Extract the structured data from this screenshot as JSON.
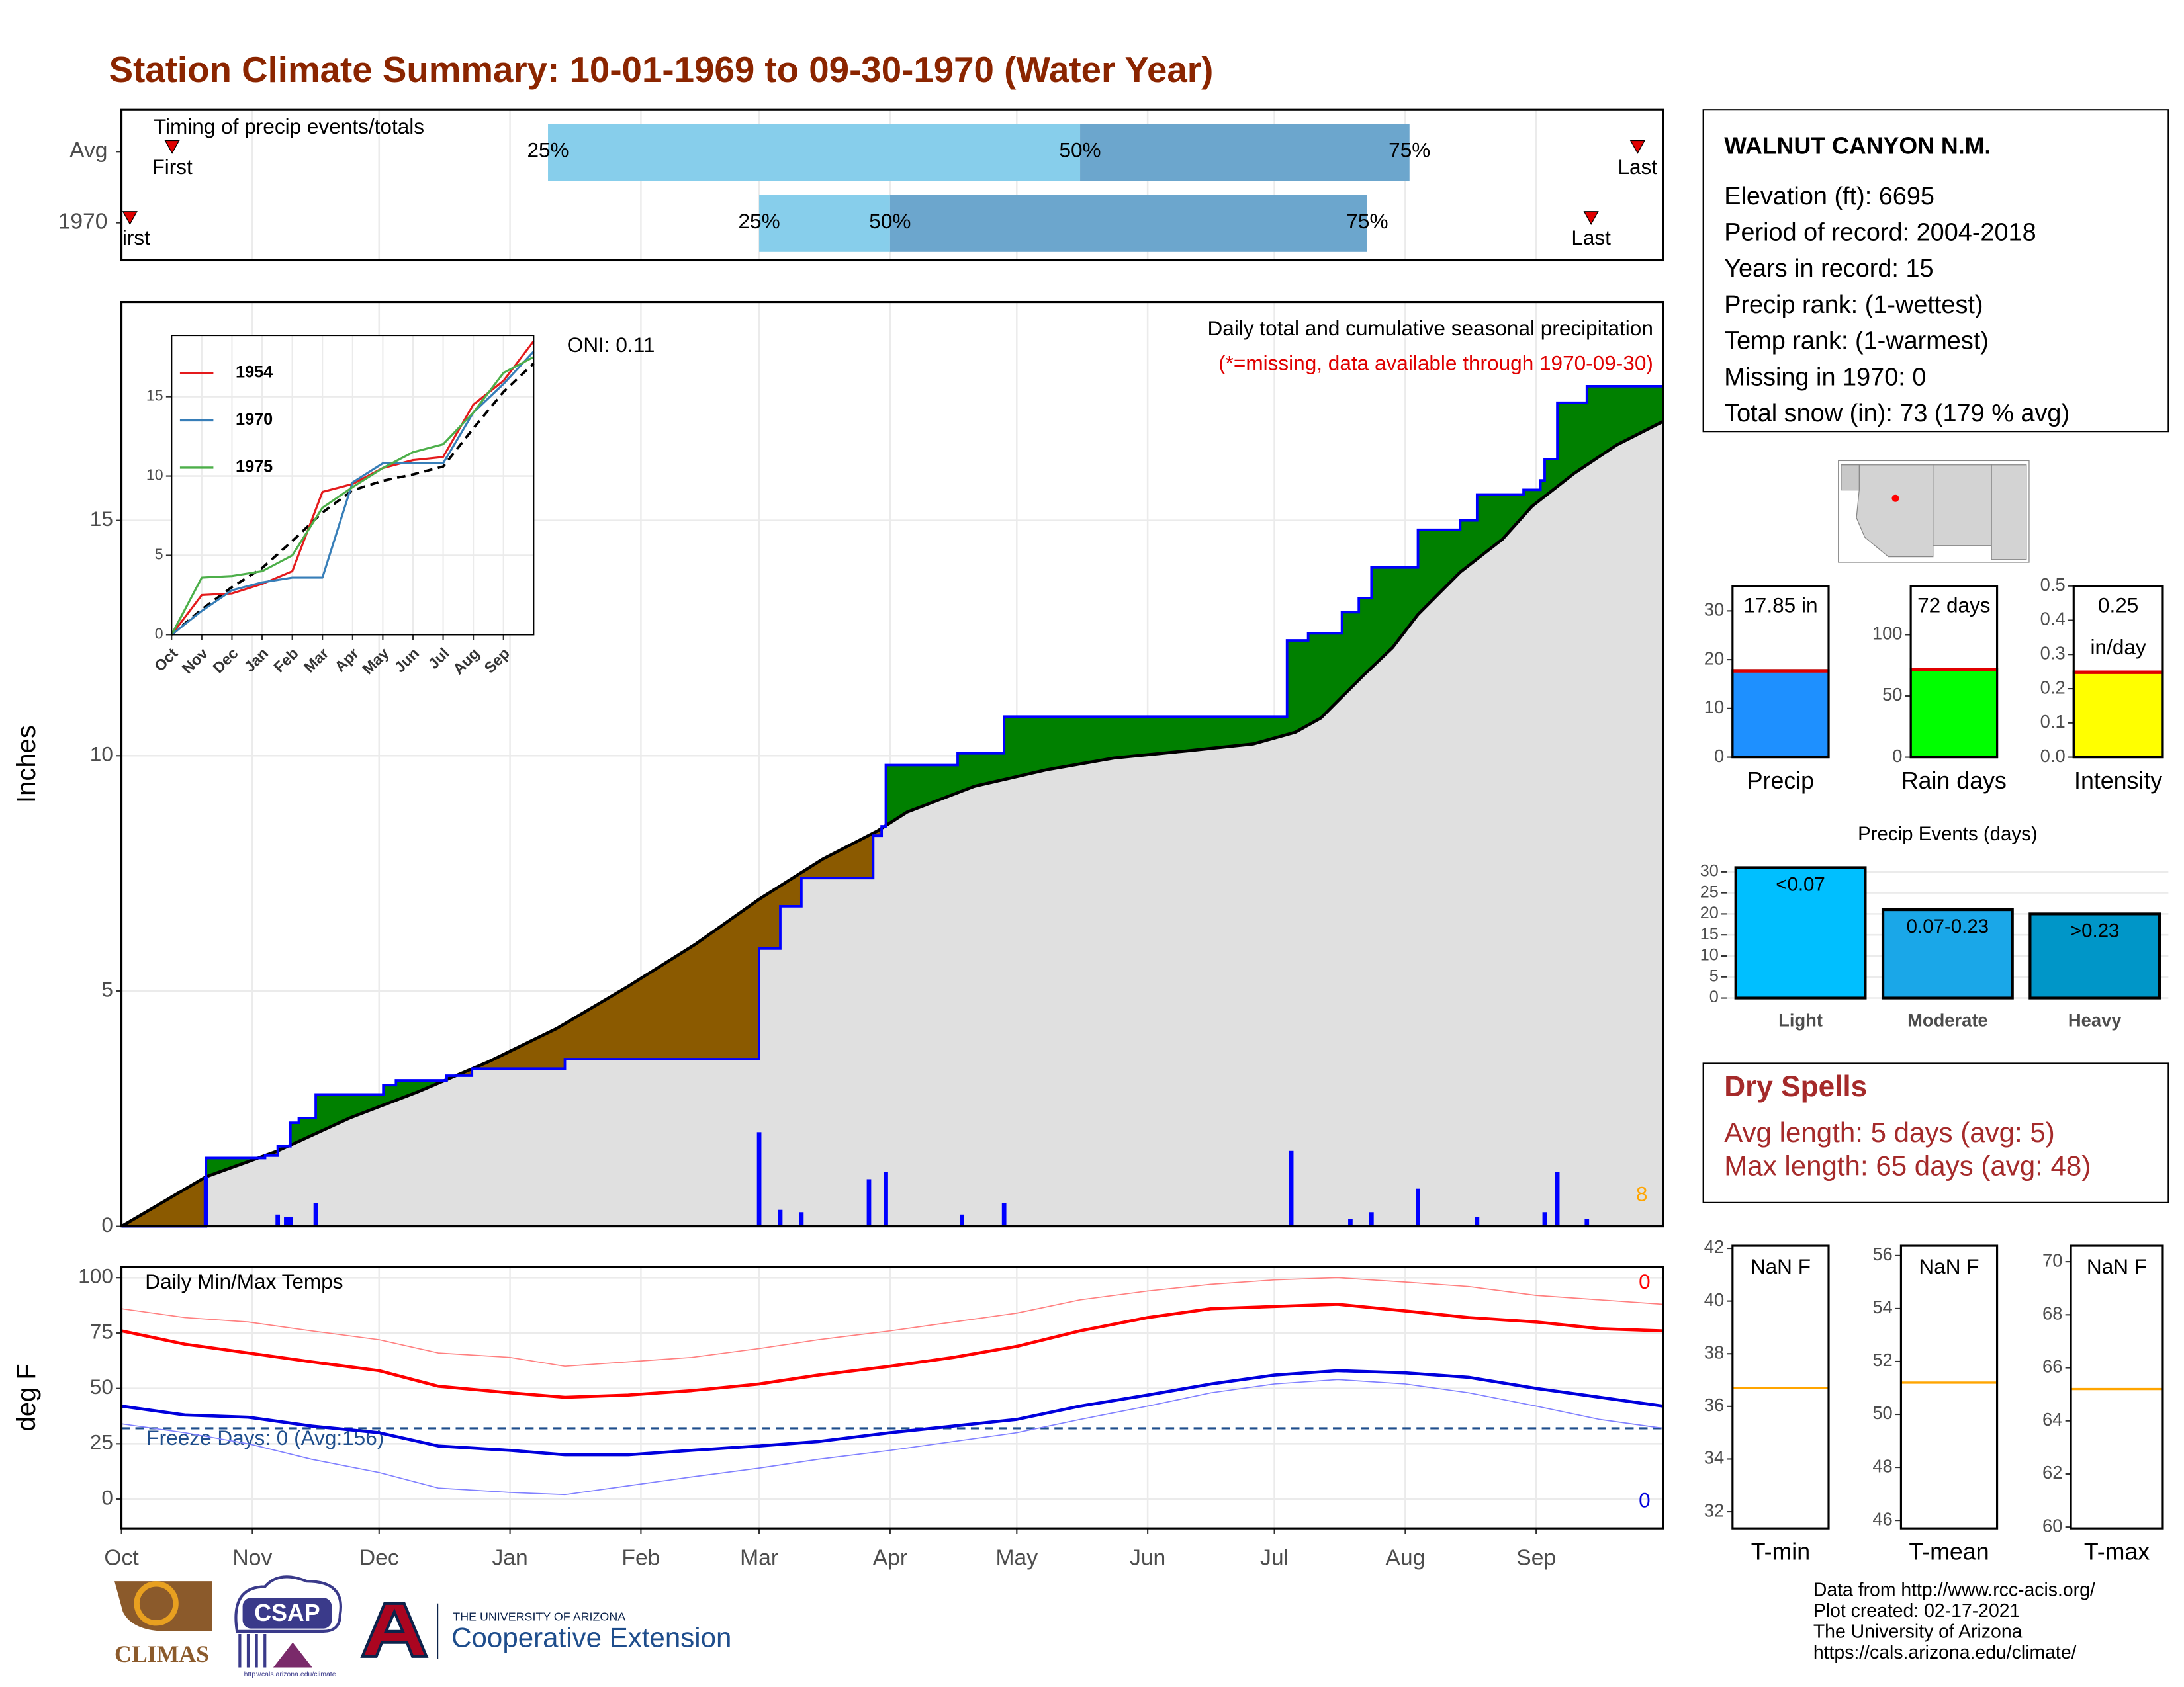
{
  "title": "Station Climate Summary: 10-01-1969 to 09-30-1970 (Water Year)",
  "chart_data": [
    {
      "type": "range",
      "title": "Timing of precip events/totals",
      "categories": [
        "Avg",
        "1970"
      ],
      "first": [
        12,
        2
      ],
      "q25": [
        101,
        151
      ],
      "q50": [
        227,
        182
      ],
      "q75": [
        305,
        295
      ],
      "last": [
        359,
        348
      ],
      "labels": {
        "first": "First",
        "last": "Last",
        "q25": "25%",
        "q50": "50%",
        "q75": "75%"
      },
      "colors": {
        "early": "#87ceeb",
        "late": "#6ca6cd",
        "marker": "#e00000"
      },
      "xlim": [
        0,
        365
      ]
    },
    {
      "type": "area",
      "title": "Daily total and cumulative seasonal precipitation",
      "subtitle": "(*=missing, data available through 1970-09-30)",
      "annotation": "ONI: 0.11",
      "count_note": 8,
      "ylabel": "Inches",
      "xlim": [
        0,
        365
      ],
      "ylim": [
        0,
        19.64
      ],
      "yticks": [
        0,
        5,
        10,
        15
      ],
      "grid": true,
      "series": [
        {
          "color": "#0000ff",
          "x": [
            0,
            20,
            34,
            37,
            40,
            42,
            46,
            62,
            65,
            77,
            83,
            105,
            151,
            156,
            161,
            178,
            180,
            181,
            198,
            209,
            276,
            281,
            289,
            293,
            296,
            307,
            317,
            321,
            332,
            336,
            337,
            340,
            347
          ],
          "values": [
            0,
            1.45,
            1.5,
            1.7,
            2.2,
            2.3,
            2.8,
            3.0,
            3.1,
            3.2,
            3.35,
            3.55,
            5.9,
            6.8,
            7.4,
            8.3,
            8.5,
            9.8,
            10.05,
            10.83,
            12.45,
            12.6,
            13.05,
            13.35,
            14.0,
            14.8,
            15.0,
            15.55,
            15.65,
            15.85,
            16.3,
            17.5,
            17.85
          ]
        }
      ],
      "average": {
        "color": "#000000",
        "x": [
          0,
          20,
          37,
          54,
          70,
          87,
          103,
          120,
          136,
          151,
          166,
          179,
          186,
          202,
          219,
          235,
          252,
          268,
          278,
          284,
          294,
          301,
          307,
          317,
          327,
          334,
          344,
          354,
          365
        ],
        "values": [
          0,
          1.05,
          1.6,
          2.3,
          2.85,
          3.5,
          4.2,
          5.1,
          6.0,
          6.95,
          7.8,
          8.4,
          8.8,
          9.35,
          9.7,
          9.95,
          10.1,
          10.25,
          10.5,
          10.8,
          11.7,
          12.3,
          13.0,
          13.9,
          14.6,
          15.3,
          16.0,
          16.6,
          17.1
        ]
      },
      "bars": {
        "color": "#0000ff",
        "x": [
          20,
          37,
          39,
          40,
          46,
          151,
          156,
          161,
          177,
          181,
          199,
          209,
          277,
          291,
          296,
          307,
          321,
          337,
          340,
          347
        ],
        "values": [
          1.05,
          0.25,
          0.2,
          0.2,
          0.5,
          2.0,
          0.35,
          0.3,
          1.0,
          1.15,
          0.25,
          0.5,
          1.6,
          0.15,
          0.3,
          0.8,
          0.2,
          0.3,
          1.15,
          0.15
        ]
      },
      "above_color": "#008000",
      "below_color": "#8b5a00",
      "base_color": "#e0e0e0"
    },
    {
      "type": "line",
      "x": [
        0,
        1,
        2,
        3,
        4,
        5,
        6,
        7,
        8,
        9,
        10,
        11,
        12
      ],
      "xlim": [
        0,
        12
      ],
      "xticks": [
        {
          "value": 0,
          "label": "Oct"
        },
        {
          "value": 1,
          "label": "Nov"
        },
        {
          "value": 2,
          "label": "Dec"
        },
        {
          "value": 3,
          "label": "Jan"
        },
        {
          "value": 4,
          "label": "Feb"
        },
        {
          "value": 5,
          "label": "Mar"
        },
        {
          "value": 6,
          "label": "Apr"
        },
        {
          "value": 7,
          "label": "May"
        },
        {
          "value": 8,
          "label": "Jun"
        },
        {
          "value": 9,
          "label": "Jul"
        },
        {
          "value": 10,
          "label": "Aug"
        },
        {
          "value": 11,
          "label": "Sep"
        }
      ],
      "xtick_rotation": -45,
      "ylim": [
        0,
        18.86
      ],
      "yticks": [
        0,
        5,
        10,
        15
      ],
      "grid": true,
      "legend": "top-left",
      "series": [
        {
          "name": "1954",
          "color": "#e41a1c",
          "values": [
            0,
            2.5,
            2.6,
            3.2,
            4.0,
            9.0,
            9.5,
            10.5,
            11.0,
            11.2,
            14.5,
            16.0,
            18.5
          ]
        },
        {
          "name": "1970",
          "color": "#377eb8",
          "values": [
            0,
            1.5,
            2.8,
            3.3,
            3.6,
            3.6,
            9.6,
            10.8,
            10.8,
            10.8,
            14.0,
            15.8,
            17.85
          ]
        },
        {
          "name": "1975",
          "color": "#4daf4a",
          "values": [
            0,
            3.6,
            3.7,
            4.0,
            5.0,
            8.0,
            9.3,
            10.5,
            11.5,
            12.0,
            14.0,
            16.5,
            17.5
          ]
        }
      ],
      "average": {
        "color": "#000000",
        "values": [
          0,
          1.6,
          3.0,
          4.2,
          5.9,
          7.7,
          9.1,
          9.7,
          10.1,
          10.6,
          13.0,
          15.3,
          17.1
        ]
      }
    },
    {
      "type": "line",
      "title": "Daily Min/Max Temps",
      "ylabel": "deg F",
      "x": [
        0,
        15,
        30,
        45,
        61,
        75,
        92,
        105,
        120,
        135,
        151,
        165,
        182,
        197,
        212,
        227,
        243,
        258,
        273,
        288,
        304,
        319,
        335,
        350,
        365
      ],
      "xlim": [
        0,
        365
      ],
      "xticks": [
        {
          "value": 0,
          "label": "Oct"
        },
        {
          "value": 31,
          "label": "Nov"
        },
        {
          "value": 61,
          "label": "Dec"
        },
        {
          "value": 92,
          "label": "Jan"
        },
        {
          "value": 123,
          "label": "Feb"
        },
        {
          "value": 151,
          "label": "Mar"
        },
        {
          "value": 182,
          "label": "Apr"
        },
        {
          "value": 212,
          "label": "May"
        },
        {
          "value": 243,
          "label": "Jun"
        },
        {
          "value": 273,
          "label": "Jul"
        },
        {
          "value": 304,
          "label": "Aug"
        },
        {
          "value": 335,
          "label": "Sep"
        }
      ],
      "ylim": [
        -13.2,
        105
      ],
      "yticks": [
        0,
        25,
        50,
        75,
        100
      ],
      "grid": true,
      "series": [
        {
          "color": "#ff8080",
          "width": 0.8,
          "values": [
            86,
            82,
            80,
            76,
            72,
            66,
            64,
            60,
            62,
            64,
            68,
            72,
            76,
            80,
            84,
            90,
            94,
            97,
            99,
            100,
            98,
            96,
            92,
            90,
            88
          ]
        },
        {
          "color": "#ff0000",
          "width": 2.2,
          "values": [
            76,
            70,
            66,
            62,
            58,
            51,
            48,
            46,
            47,
            49,
            52,
            56,
            60,
            64,
            69,
            76,
            82,
            86,
            87,
            88,
            85,
            82,
            80,
            77,
            76
          ]
        },
        {
          "color": "#0000dd",
          "width": 2.2,
          "values": [
            42,
            38,
            37,
            33,
            30,
            24,
            22,
            20,
            20,
            22,
            24,
            26,
            30,
            33,
            36,
            42,
            47,
            52,
            56,
            58,
            57,
            55,
            50,
            46,
            42
          ]
        },
        {
          "color": "#8080ff",
          "width": 0.8,
          "values": [
            34,
            30,
            25,
            18,
            12,
            5,
            3,
            2,
            6,
            10,
            14,
            18,
            22,
            26,
            30,
            36,
            42,
            48,
            52,
            54,
            52,
            48,
            42,
            36,
            32
          ]
        }
      ],
      "freeze": {
        "value": 32,
        "label": "Freeze Days: 0 (Avg:156)",
        "color": "#1f4e8c"
      },
      "max_note": 0,
      "min_note": 0
    },
    {
      "type": "gauge",
      "title": "Precip",
      "values": [
        17.85
      ],
      "value_labels": [
        "17.85 in"
      ],
      "avg": 17.7,
      "avg_color": "#e00000",
      "color": "#1e90ff",
      "ylim": [
        0,
        35.1
      ],
      "yticks": [
        0,
        10,
        20,
        30
      ]
    },
    {
      "type": "gauge",
      "title": "Rain days",
      "values": [
        72
      ],
      "value_labels": [
        "72 days"
      ],
      "avg": 71.6,
      "avg_color": "#e00000",
      "color": "#00ff00",
      "ylim": [
        0,
        139.8
      ],
      "yticks": [
        0,
        50,
        100
      ]
    },
    {
      "type": "gauge",
      "title": "Intensity",
      "values": [
        0.25
      ],
      "value_labels": [
        "0.25"
      ],
      "unit_label": "in/day",
      "avg": 0.248,
      "avg_color": "#e00000",
      "color": "#ffff00",
      "ylim": [
        0,
        0.5
      ],
      "yticks": [
        {
          "value": 0,
          "label": "0.0"
        },
        0.1,
        0.2,
        0.3,
        0.4,
        0.5
      ]
    },
    {
      "type": "bar",
      "title": "Precip Events (days)",
      "categories": [
        "Light",
        "Moderate",
        "Heavy"
      ],
      "values": [
        31,
        21,
        20
      ],
      "bin_labels": [
        "<0.07",
        "0.07-0.23",
        ">0.23"
      ],
      "colors": [
        "#00bfff",
        "#1aa7e8",
        "#0096c8"
      ],
      "ylim": [
        0,
        33.1
      ],
      "yticks": [
        0,
        5,
        10,
        15,
        20,
        25,
        30
      ],
      "grid": true
    },
    {
      "type": "gauge",
      "title": "T-min",
      "label": "NaN F",
      "avg": 36.7,
      "avg_color": "#ffa500",
      "ylim": [
        31.37,
        42.1
      ],
      "yticks": [
        32,
        34,
        36,
        38,
        40,
        42
      ]
    },
    {
      "type": "gauge",
      "title": "T-mean",
      "label": "NaN F",
      "avg": 51.2,
      "avg_color": "#ffa500",
      "ylim": [
        45.7,
        56.37
      ],
      "yticks": [
        46,
        48,
        50,
        52,
        54,
        56
      ]
    },
    {
      "type": "gauge",
      "title": "T-max",
      "label": "NaN F",
      "avg": 65.2,
      "avg_color": "#ffa500",
      "ylim": [
        59.95,
        70.6
      ],
      "yticks": [
        60,
        62,
        64,
        66,
        68,
        70
      ]
    }
  ],
  "station": {
    "name": "WALNUT CANYON N.M.",
    "lines": [
      "Elevation (ft): 6695",
      "Period of record: 2004-2018",
      "Years in record: 15",
      "Precip rank:  (1-wettest)",
      "Temp rank:  (1-warmest)",
      "Missing in 1970: 0",
      "Total snow (in): 73 (179 % avg)"
    ]
  },
  "dry_spells": {
    "title": "Dry Spells",
    "lines": [
      "Avg length: 5 days (avg: 5)",
      "Max length: 65 days (avg: 48)"
    ]
  },
  "footer": [
    "Data from http://www.rcc-acis.org/",
    "Plot created: 02-17-2021",
    "The University of Arizona",
    "https://cals.arizona.edu/climate/"
  ],
  "logos": {
    "climas": "CLIMAS",
    "csap": "CSAP",
    "csap_url": "http://cals.arizona.edu/climate",
    "ua": "THE UNIVERSITY OF ARIZONA",
    "extension": "Cooperative Extension"
  }
}
